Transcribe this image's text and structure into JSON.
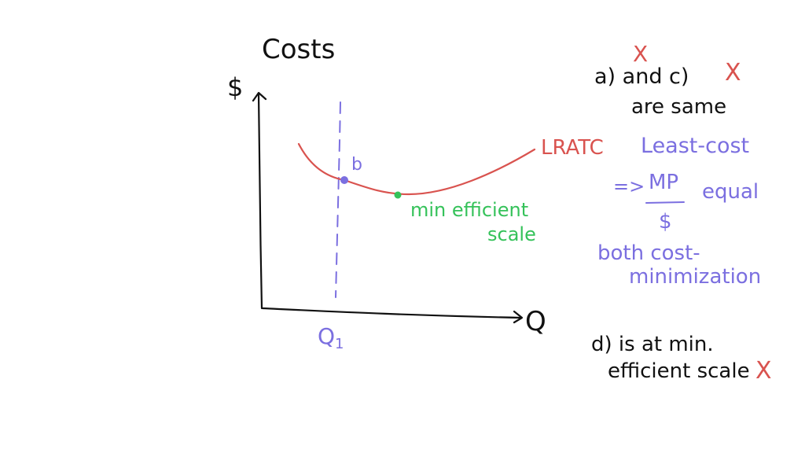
{
  "colors": {
    "black": "#111111",
    "red": "#d9534f",
    "blue": "#7b6fe0",
    "green": "#35c25a"
  },
  "graph": {
    "title": "Costs",
    "y_axis_label": "$",
    "x_axis_label": "Q",
    "x_tick_label": "Q1",
    "curve_label": "LRATC",
    "point_b_label": "b",
    "min_scale_label_line1": "min efficient",
    "min_scale_label_line2": "scale"
  },
  "notes": {
    "ac_line1": "a) and c)",
    "ac_line2": "are same",
    "mark_a": "X",
    "mark_c": "X",
    "least_cost": "Least-cost",
    "arrow": "=>",
    "mp": "MP",
    "dollar": "$",
    "equal": "equal",
    "both_line1": "both cost-",
    "both_line2": "minimization",
    "d_line1": "d) is at min.",
    "d_line2": "efficient scale",
    "mark_d": "X"
  }
}
